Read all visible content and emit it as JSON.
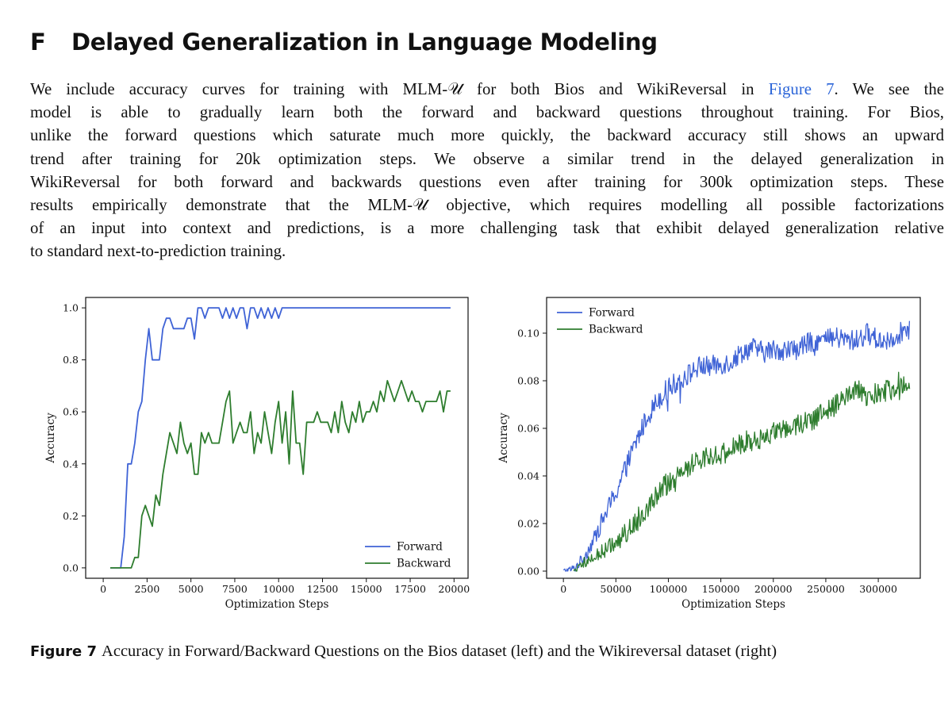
{
  "section": {
    "number": "F",
    "title": "Delayed Generalization in Language Modeling"
  },
  "paragraph": {
    "lines": [
      {
        "before": "We include accuracy curves for training with MLM-𝒰 for both Bios and WikiReversal in ",
        "ref": "Figure 7",
        "after": ". We see the"
      },
      {
        "text": "model is able to gradually learn both the forward and backward questions throughout training. For Bios,"
      },
      {
        "text": "unlike the forward questions which saturate much more quickly, the backward accuracy still shows an upward"
      },
      {
        "text": "trend after training for 20k optimization steps. We observe a similar trend in the delayed generalization in"
      },
      {
        "text": "WikiReversal for both forward and backwards questions even after training for 300k optimization steps. These"
      },
      {
        "text": "results empirically demonstrate that the MLM-𝒰 objective, which requires modelling all possible factorizations"
      },
      {
        "text": "of an input into context and predictions, is a more challenging task that exhibit delayed generalization relative"
      },
      {
        "text": "to standard next-to-prediction training."
      }
    ]
  },
  "colors": {
    "forward": "#3f63d6",
    "backward": "#2e7d2e",
    "link": "#2a64d8"
  },
  "chart_data": [
    {
      "type": "line",
      "dataset": "Bios",
      "xlabel": "Optimization Steps",
      "ylabel": "Accuracy",
      "xlim": [
        -1000,
        20800
      ],
      "ylim": [
        -0.04,
        1.04
      ],
      "xticks": [
        0,
        2500,
        5000,
        7500,
        10000,
        12500,
        15000,
        17500,
        20000
      ],
      "yticks": [
        0.0,
        0.2,
        0.4,
        0.6,
        0.8,
        1.0
      ],
      "ytick_labels": [
        "0.0",
        "0.2",
        "0.4",
        "0.6",
        "0.8",
        "1.0"
      ],
      "legend_position": "lower-right",
      "series": [
        {
          "name": "Forward",
          "color": "#3f63d6",
          "x": [
            400,
            1000,
            1200,
            1400,
            1600,
            1800,
            2000,
            2200,
            2400,
            2600,
            2800,
            3000,
            3200,
            3400,
            3600,
            3800,
            4000,
            4200,
            4400,
            4600,
            4800,
            5000,
            5200,
            5400,
            5600,
            5800,
            6000,
            6200,
            6400,
            6600,
            6800,
            7000,
            7200,
            7400,
            7600,
            7800,
            8000,
            8200,
            8400,
            8600,
            8800,
            9000,
            9200,
            9400,
            9600,
            9800,
            10000,
            10200,
            10400,
            10600,
            10800,
            11000,
            12000,
            13000,
            14000,
            15000,
            16000,
            17000,
            18000,
            19000,
            19800
          ],
          "y": [
            0.0,
            0.0,
            0.12,
            0.4,
            0.4,
            0.48,
            0.6,
            0.64,
            0.8,
            0.92,
            0.8,
            0.8,
            0.8,
            0.92,
            0.96,
            0.96,
            0.92,
            0.92,
            0.92,
            0.92,
            0.96,
            0.96,
            0.88,
            1.0,
            1.0,
            0.96,
            1.0,
            1.0,
            1.0,
            1.0,
            0.96,
            1.0,
            0.96,
            1.0,
            0.96,
            1.0,
            1.0,
            0.92,
            1.0,
            1.0,
            0.96,
            1.0,
            0.96,
            1.0,
            0.96,
            1.0,
            0.96,
            1.0,
            1.0,
            1.0,
            1.0,
            1.0,
            1.0,
            1.0,
            1.0,
            1.0,
            1.0,
            1.0,
            1.0,
            1.0,
            1.0
          ]
        },
        {
          "name": "Backward",
          "color": "#2e7d2e",
          "x": [
            400,
            1200,
            1600,
            1800,
            2000,
            2200,
            2400,
            2600,
            2800,
            3000,
            3200,
            3400,
            3600,
            3800,
            4000,
            4200,
            4400,
            4600,
            4800,
            5000,
            5200,
            5400,
            5600,
            5800,
            6000,
            6200,
            6400,
            6600,
            6800,
            7000,
            7200,
            7400,
            7600,
            7800,
            8000,
            8200,
            8400,
            8600,
            8800,
            9000,
            9200,
            9400,
            9600,
            9800,
            10000,
            10200,
            10400,
            10600,
            10800,
            11000,
            11200,
            11400,
            11600,
            11800,
            12000,
            12200,
            12400,
            12600,
            12800,
            13000,
            13200,
            13400,
            13600,
            13800,
            14000,
            14200,
            14400,
            14600,
            14800,
            15000,
            15200,
            15400,
            15600,
            15800,
            16000,
            16200,
            16400,
            16600,
            16800,
            17000,
            17200,
            17400,
            17600,
            17800,
            18000,
            18200,
            18400,
            18600,
            18800,
            19000,
            19200,
            19400,
            19600,
            19800
          ],
          "y": [
            0.0,
            0.0,
            0.0,
            0.04,
            0.04,
            0.2,
            0.24,
            0.2,
            0.16,
            0.28,
            0.24,
            0.36,
            0.44,
            0.52,
            0.48,
            0.44,
            0.56,
            0.48,
            0.44,
            0.48,
            0.36,
            0.36,
            0.52,
            0.48,
            0.52,
            0.48,
            0.48,
            0.48,
            0.56,
            0.64,
            0.68,
            0.48,
            0.52,
            0.56,
            0.52,
            0.52,
            0.6,
            0.44,
            0.52,
            0.48,
            0.6,
            0.52,
            0.44,
            0.56,
            0.64,
            0.48,
            0.6,
            0.4,
            0.68,
            0.48,
            0.48,
            0.36,
            0.56,
            0.56,
            0.56,
            0.6,
            0.56,
            0.56,
            0.56,
            0.52,
            0.6,
            0.52,
            0.64,
            0.56,
            0.52,
            0.6,
            0.56,
            0.64,
            0.56,
            0.6,
            0.6,
            0.64,
            0.6,
            0.68,
            0.64,
            0.72,
            0.68,
            0.64,
            0.68,
            0.72,
            0.68,
            0.64,
            0.68,
            0.64,
            0.64,
            0.6,
            0.64,
            0.64,
            0.64,
            0.64,
            0.68,
            0.6,
            0.68,
            0.68
          ]
        }
      ]
    },
    {
      "type": "line",
      "dataset": "Wikireversal",
      "xlabel": "Optimization Steps",
      "ylabel": "Accuracy",
      "xlim": [
        -16000,
        340000
      ],
      "ylim": [
        -0.003,
        0.115
      ],
      "xticks": [
        0,
        50000,
        100000,
        150000,
        200000,
        250000,
        300000
      ],
      "yticks": [
        0.0,
        0.02,
        0.04,
        0.06,
        0.08,
        0.1
      ],
      "ytick_labels": [
        "0.00",
        "0.02",
        "0.04",
        "0.06",
        "0.08",
        "0.10"
      ],
      "legend_position": "top-left",
      "series": [
        {
          "name": "Forward",
          "color": "#3f63d6",
          "x": [
            0,
            10000,
            20000,
            30000,
            40000,
            50000,
            60000,
            70000,
            80000,
            90000,
            100000,
            110000,
            120000,
            130000,
            140000,
            150000,
            160000,
            170000,
            180000,
            190000,
            200000,
            210000,
            220000,
            230000,
            240000,
            250000,
            260000,
            270000,
            280000,
            290000,
            300000,
            310000,
            320000,
            330000
          ],
          "y": [
            0.0,
            0.001,
            0.006,
            0.014,
            0.024,
            0.033,
            0.044,
            0.055,
            0.065,
            0.072,
            0.077,
            0.08,
            0.083,
            0.086,
            0.086,
            0.087,
            0.088,
            0.092,
            0.094,
            0.092,
            0.093,
            0.093,
            0.093,
            0.095,
            0.097,
            0.097,
            0.098,
            0.097,
            0.097,
            0.1,
            0.097,
            0.097,
            0.1,
            0.102
          ]
        },
        {
          "name": "Backward",
          "color": "#2e7d2e",
          "x": [
            10000,
            20000,
            30000,
            40000,
            50000,
            60000,
            70000,
            80000,
            90000,
            100000,
            110000,
            120000,
            130000,
            140000,
            150000,
            160000,
            170000,
            180000,
            190000,
            200000,
            210000,
            220000,
            230000,
            240000,
            250000,
            260000,
            270000,
            280000,
            290000,
            300000,
            310000,
            320000,
            330000
          ],
          "y": [
            0.0,
            0.003,
            0.006,
            0.009,
            0.012,
            0.016,
            0.021,
            0.027,
            0.033,
            0.037,
            0.041,
            0.044,
            0.047,
            0.049,
            0.049,
            0.051,
            0.054,
            0.055,
            0.056,
            0.058,
            0.06,
            0.061,
            0.063,
            0.064,
            0.067,
            0.07,
            0.073,
            0.076,
            0.073,
            0.075,
            0.076,
            0.078,
            0.077
          ]
        }
      ]
    }
  ],
  "caption": {
    "label": "Figure 7",
    "text": "Accuracy in Forward/Backward Questions on the Bios dataset (left) and the Wikireversal dataset (right)"
  }
}
